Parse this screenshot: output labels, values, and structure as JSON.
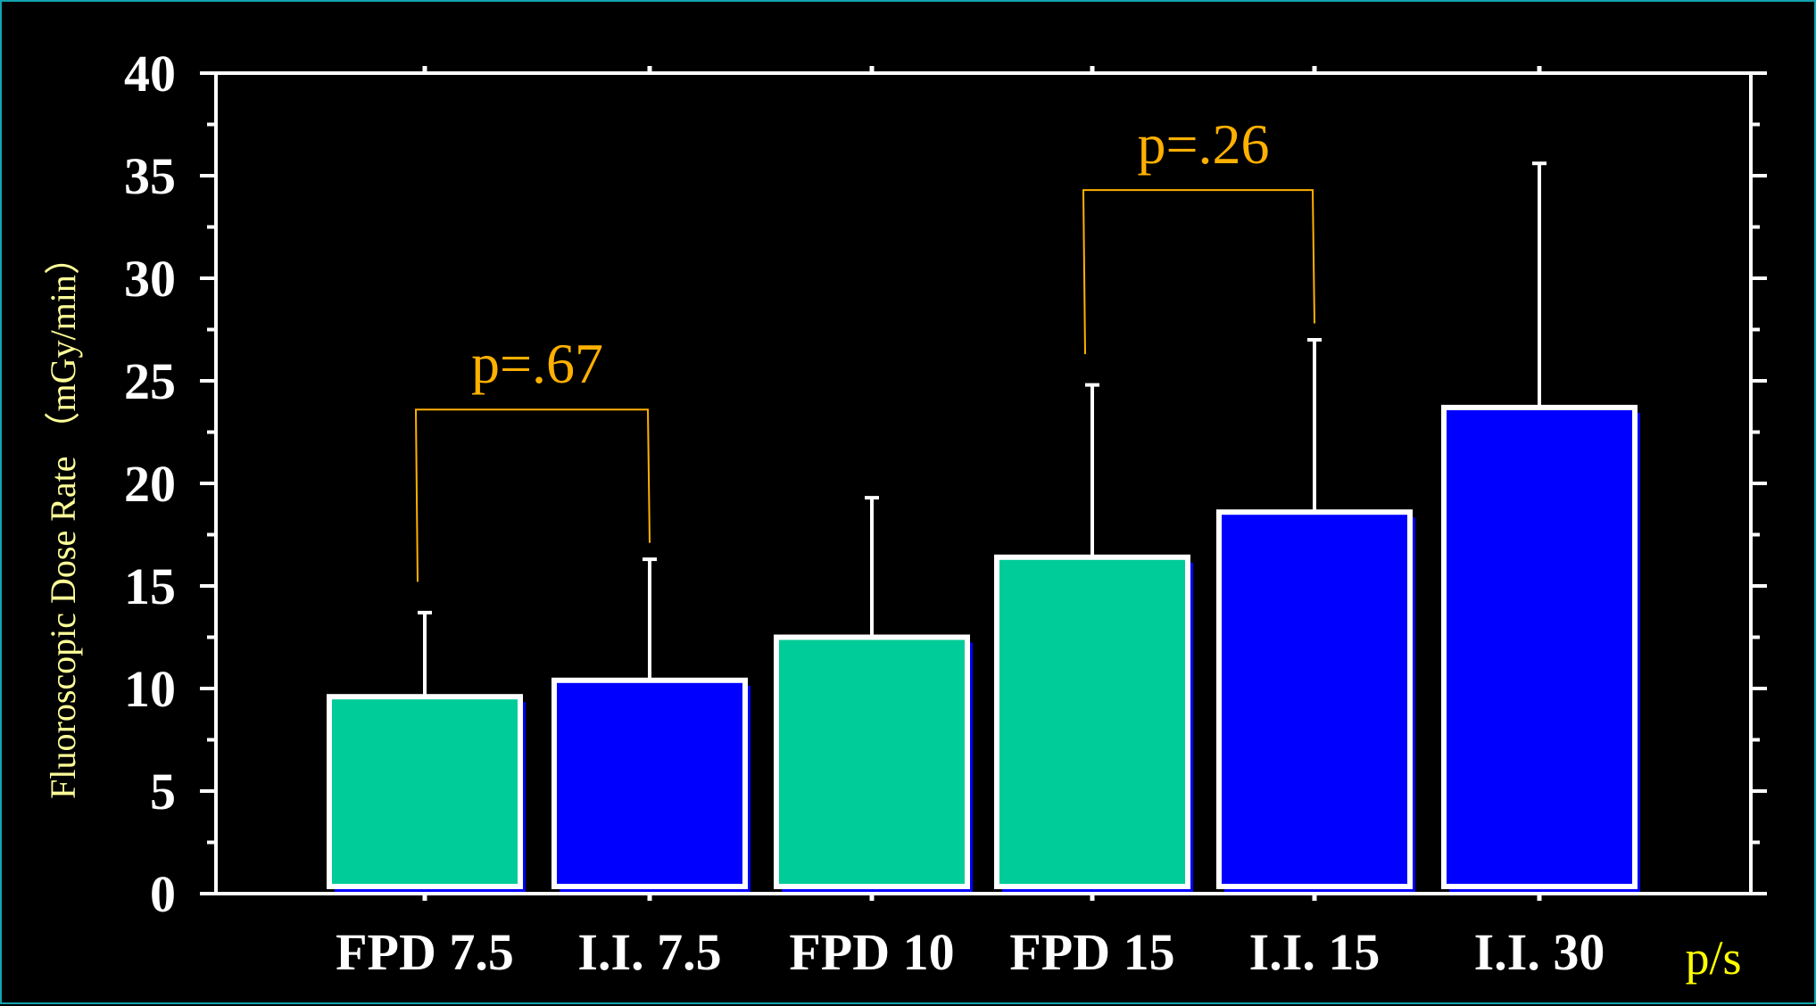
{
  "chart_data": {
    "type": "bar",
    "title": "",
    "ylabel": "Fluoroscopic Dose Rate （mGy/min）",
    "x_unit": "p/s",
    "ylim": [
      0,
      40
    ],
    "yticks": [
      0,
      5,
      10,
      15,
      20,
      25,
      30,
      35,
      40
    ],
    "categories": [
      "FPD 7.5",
      "I.I. 7.5",
      "FPD 10",
      "FPD 15",
      "I.I. 15",
      "I.I. 30"
    ],
    "values": [
      9.6,
      10.4,
      12.5,
      16.4,
      18.6,
      23.7
    ],
    "error_upper": [
      13.7,
      16.3,
      19.3,
      24.8,
      27.0,
      35.6
    ],
    "bar_colors": [
      "#00cc99",
      "#0000ff",
      "#00cc99",
      "#00cc99",
      "#0000ff",
      "#0000ff"
    ],
    "comparisons": [
      {
        "from": 0,
        "to": 1,
        "label": "p=.67"
      },
      {
        "from": 3,
        "to": 4,
        "label": "p=.26"
      }
    ],
    "grid": false,
    "legend": "none"
  },
  "colors": {
    "background": "#000000",
    "border": "#12a3b0",
    "axis": "#ffffff",
    "fpd": "#00cc99",
    "ii": "#0000ff",
    "annotation": "#ffb000",
    "ylabel": "#ffff99",
    "unit": "#ffff00"
  }
}
